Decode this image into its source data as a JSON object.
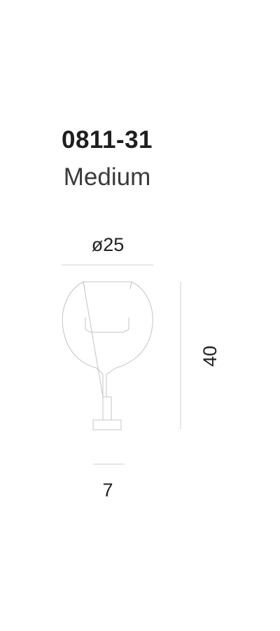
{
  "product": {
    "code": "0811-31",
    "size_name": "Medium"
  },
  "dimensions": {
    "diameter": "ø25",
    "height": "40",
    "base": "7"
  },
  "colors": {
    "text": "#222222",
    "line": "#c8c8c8"
  }
}
